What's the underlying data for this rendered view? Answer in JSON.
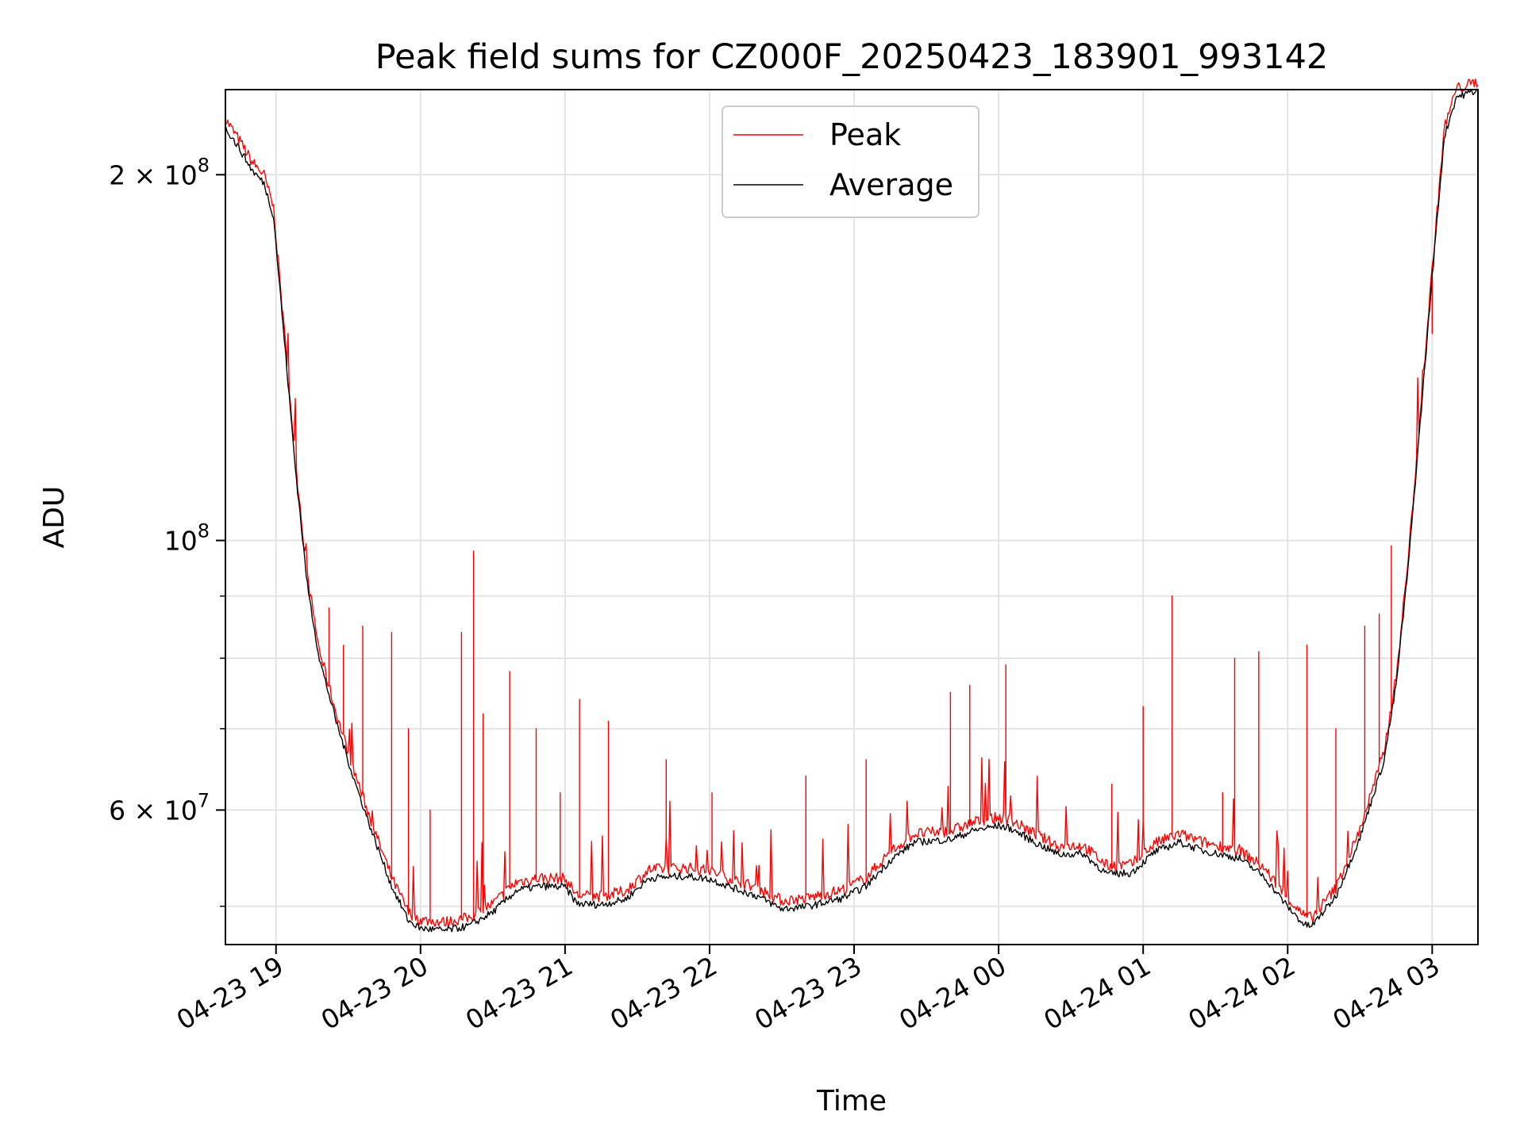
{
  "chart_data": {
    "type": "line",
    "title": "Peak field sums for CZ000F_20250423_183901_993142",
    "xlabel": "Time",
    "ylabel": "ADU",
    "y_scale": "log",
    "xlim": [
      "2025-04-23 18:39",
      "2025-04-24 03:19"
    ],
    "ylim": [
      46500000,
      235000000
    ],
    "grid": true,
    "legend": {
      "position": "top-center",
      "entries": [
        "Peak",
        "Average"
      ]
    },
    "x_ticks": [
      "04-23 19",
      "04-23 20",
      "04-23 21",
      "04-23 22",
      "04-23 23",
      "04-24 00",
      "04-24 01",
      "04-24 02",
      "04-24 03"
    ],
    "y_major_ticks": [
      {
        "value": 200000000,
        "mantissa": "2",
        "exponent": "8"
      },
      {
        "value": 100000000,
        "mantissa": "",
        "exponent": "8"
      },
      {
        "value": 60000000,
        "mantissa": "6",
        "exponent": "7"
      }
    ],
    "y_minor_ticks": [
      50000000,
      70000000,
      80000000,
      90000000
    ],
    "series": [
      {
        "name": "Average",
        "color": "#000000",
        "points": [
          [
            "2025-04-23 18:39",
            219000000
          ],
          [
            "2025-04-23 18:45",
            210000000
          ],
          [
            "2025-04-23 18:50",
            202000000
          ],
          [
            "2025-04-23 18:55",
            197000000
          ],
          [
            "2025-04-23 18:59",
            185000000
          ],
          [
            "2025-04-23 19:03",
            150000000
          ],
          [
            "2025-04-23 19:08",
            115000000
          ],
          [
            "2025-04-23 19:13",
            92000000
          ],
          [
            "2025-04-23 19:18",
            80000000
          ],
          [
            "2025-04-23 19:25",
            71000000
          ],
          [
            "2025-04-23 19:32",
            64000000
          ],
          [
            "2025-04-23 19:40",
            57500000
          ],
          [
            "2025-04-23 19:48",
            52000000
          ],
          [
            "2025-04-23 19:55",
            48700000
          ],
          [
            "2025-04-23 20:00",
            48000000
          ],
          [
            "2025-04-23 20:10",
            47800000
          ],
          [
            "2025-04-23 20:20",
            48200000
          ],
          [
            "2025-04-23 20:30",
            49500000
          ],
          [
            "2025-04-23 20:40",
            51600000
          ],
          [
            "2025-04-23 20:50",
            52000000
          ],
          [
            "2025-04-23 21:00",
            51900000
          ],
          [
            "2025-04-23 21:05",
            50300000
          ],
          [
            "2025-04-23 21:15",
            50200000
          ],
          [
            "2025-04-23 21:25",
            50700000
          ],
          [
            "2025-04-23 21:35",
            52800000
          ],
          [
            "2025-04-23 21:50",
            53000000
          ],
          [
            "2025-04-23 22:00",
            52700000
          ],
          [
            "2025-04-23 22:10",
            51800000
          ],
          [
            "2025-04-23 22:20",
            51000000
          ],
          [
            "2025-04-23 22:30",
            49800000
          ],
          [
            "2025-04-23 22:40",
            50000000
          ],
          [
            "2025-04-23 22:55",
            50800000
          ],
          [
            "2025-04-23 23:05",
            52000000
          ],
          [
            "2025-04-23 23:15",
            54600000
          ],
          [
            "2025-04-23 23:25",
            56500000
          ],
          [
            "2025-04-23 23:40",
            56800000
          ],
          [
            "2025-04-23 23:50",
            57800000
          ],
          [
            "2025-04-24 00:00",
            58300000
          ],
          [
            "2025-04-24 00:05",
            58000000
          ],
          [
            "2025-04-24 00:15",
            56500000
          ],
          [
            "2025-04-24 00:25",
            55200000
          ],
          [
            "2025-04-24 00:35",
            55300000
          ],
          [
            "2025-04-24 00:45",
            53200000
          ],
          [
            "2025-04-24 00:55",
            53300000
          ],
          [
            "2025-04-24 01:05",
            55500000
          ],
          [
            "2025-04-24 01:15",
            56500000
          ],
          [
            "2025-04-24 01:25",
            55600000
          ],
          [
            "2025-04-24 01:40",
            54800000
          ],
          [
            "2025-04-24 01:50",
            53000000
          ],
          [
            "2025-04-24 02:00",
            50000000
          ],
          [
            "2025-04-24 02:07",
            48300000
          ],
          [
            "2025-04-24 02:10",
            48200000
          ],
          [
            "2025-04-24 02:20",
            51000000
          ],
          [
            "2025-04-24 02:30",
            57000000
          ],
          [
            "2025-04-24 02:40",
            66000000
          ],
          [
            "2025-04-24 02:45",
            76000000
          ],
          [
            "2025-04-24 02:50",
            95000000
          ],
          [
            "2025-04-24 02:55",
            125000000
          ],
          [
            "2025-04-24 03:00",
            165000000
          ],
          [
            "2025-04-24 03:05",
            215000000
          ],
          [
            "2025-04-24 03:10",
            232000000
          ],
          [
            "2025-04-24 03:19",
            235000000
          ]
        ]
      },
      {
        "name": "Peak",
        "color": "#ff0000",
        "base": "follows Average",
        "spikes": [
          [
            "2025-04-23 19:14",
            90000000
          ],
          [
            "2025-04-23 19:22",
            88000000
          ],
          [
            "2025-04-23 19:28",
            82000000
          ],
          [
            "2025-04-23 19:36",
            85000000
          ],
          [
            "2025-04-23 19:48",
            84000000
          ],
          [
            "2025-04-23 19:55",
            70000000
          ],
          [
            "2025-04-23 20:04",
            60000000
          ],
          [
            "2025-04-23 20:17",
            84000000
          ],
          [
            "2025-04-23 20:22",
            98000000
          ],
          [
            "2025-04-23 20:26",
            72000000
          ],
          [
            "2025-04-23 20:37",
            78000000
          ],
          [
            "2025-04-23 20:48",
            70000000
          ],
          [
            "2025-04-23 20:58",
            62000000
          ],
          [
            "2025-04-23 21:06",
            74000000
          ],
          [
            "2025-04-23 21:18",
            71000000
          ],
          [
            "2025-04-23 21:42",
            66000000
          ],
          [
            "2025-04-23 22:01",
            62000000
          ],
          [
            "2025-04-23 22:40",
            64000000
          ],
          [
            "2025-04-23 23:05",
            66000000
          ],
          [
            "2025-04-23 23:40",
            75000000
          ],
          [
            "2025-04-23 23:48",
            76000000
          ],
          [
            "2025-04-24 00:03",
            79000000
          ],
          [
            "2025-04-24 00:47",
            63000000
          ],
          [
            "2025-04-24 01:00",
            73000000
          ],
          [
            "2025-04-24 01:12",
            90000000
          ],
          [
            "2025-04-24 01:33",
            62000000
          ],
          [
            "2025-04-24 01:38",
            80000000
          ],
          [
            "2025-04-24 01:48",
            81000000
          ],
          [
            "2025-04-24 02:08",
            82000000
          ],
          [
            "2025-04-24 02:20",
            70000000
          ],
          [
            "2025-04-24 02:32",
            85000000
          ],
          [
            "2025-04-24 02:38",
            87000000
          ],
          [
            "2025-04-24 02:43",
            99000000
          ],
          [
            "2025-04-24 02:52",
            106000000
          ],
          [
            "2025-04-24 03:00",
            148000000
          ]
        ]
      }
    ]
  }
}
